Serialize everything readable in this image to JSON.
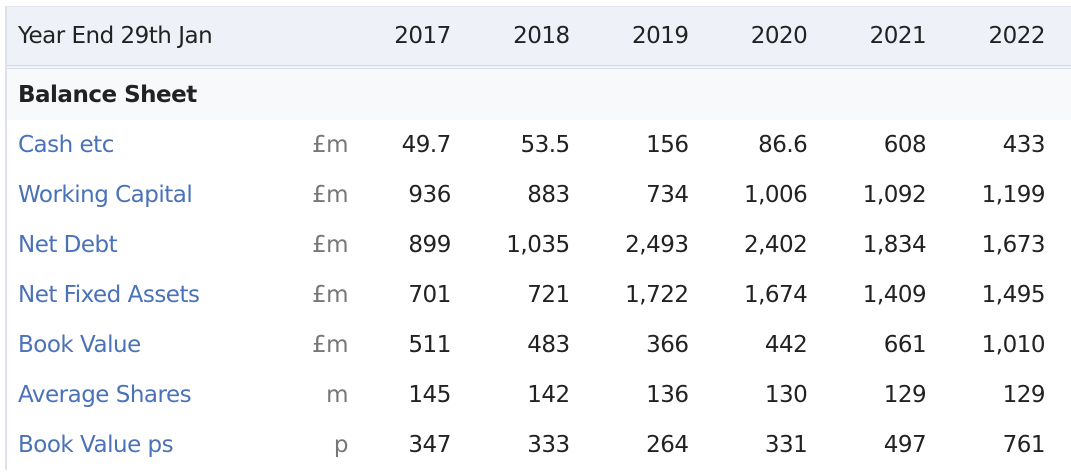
{
  "header": {
    "label": "Year End 29th Jan",
    "years": [
      "2017",
      "2018",
      "2019",
      "2020",
      "2021",
      "2022"
    ]
  },
  "section": "Balance Sheet",
  "rows": [
    {
      "label": "Cash etc",
      "unit": "£m",
      "values": [
        "49.7",
        "53.5",
        "156",
        "86.6",
        "608",
        "433"
      ]
    },
    {
      "label": "Working Capital",
      "unit": "£m",
      "values": [
        "936",
        "883",
        "734",
        "1,006",
        "1,092",
        "1,199"
      ]
    },
    {
      "label": "Net Debt",
      "unit": "£m",
      "values": [
        "899",
        "1,035",
        "2,493",
        "2,402",
        "1,834",
        "1,673"
      ]
    },
    {
      "label": "Net Fixed Assets",
      "unit": "£m",
      "values": [
        "701",
        "721",
        "1,722",
        "1,674",
        "1,409",
        "1,495"
      ]
    },
    {
      "label": "Book Value",
      "unit": "£m",
      "values": [
        "511",
        "483",
        "366",
        "442",
        "661",
        "1,010"
      ]
    },
    {
      "label": "Average Shares",
      "unit": "m",
      "values": [
        "145",
        "142",
        "136",
        "130",
        "129",
        "129"
      ]
    },
    {
      "label": "Book Value ps",
      "unit": "p",
      "values": [
        "347",
        "333",
        "264",
        "331",
        "497",
        "761"
      ]
    }
  ]
}
